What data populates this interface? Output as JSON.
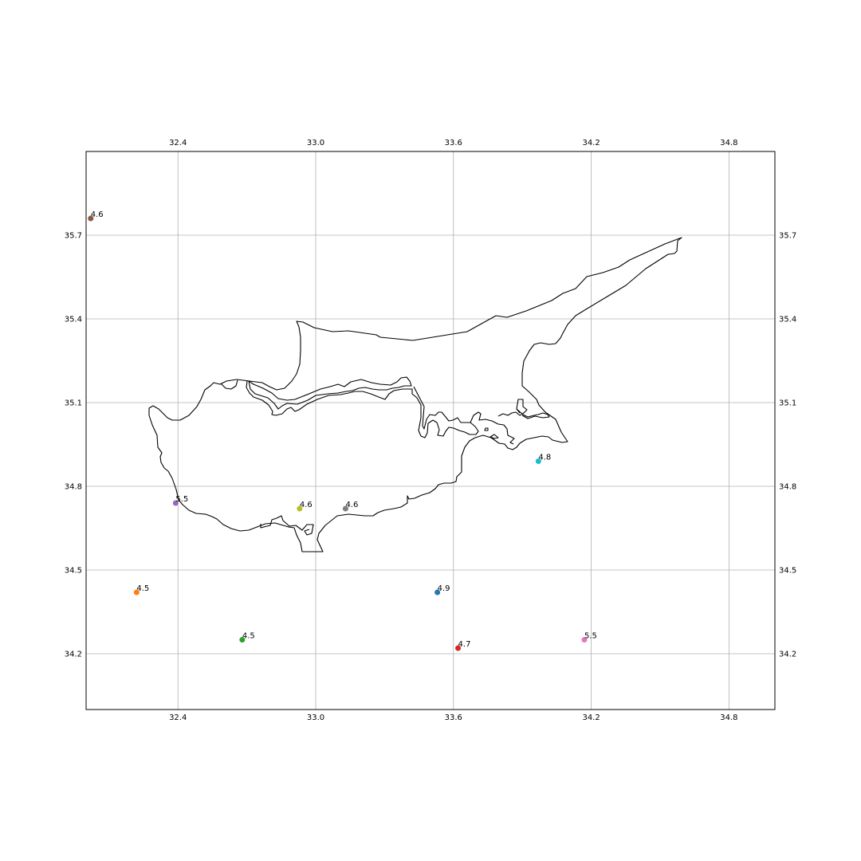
{
  "chart_data": {
    "type": "scatter",
    "title": "",
    "xlabel": "",
    "ylabel": "",
    "xlim": [
      32.0,
      35.0
    ],
    "ylim": [
      34.0,
      36.0
    ],
    "grid": true,
    "x_ticks": [
      32.4,
      33.0,
      33.6,
      34.2,
      34.8
    ],
    "y_ticks": [
      34.2,
      34.5,
      34.8,
      35.1,
      35.4,
      35.7
    ],
    "x_tick_labels": [
      "32.4",
      "33.0",
      "33.6",
      "34.2",
      "34.8"
    ],
    "y_tick_labels": [
      "34.2",
      "34.5",
      "34.8",
      "35.1",
      "35.4",
      "35.7"
    ],
    "points": [
      {
        "lon": 33.53,
        "lat": 34.42,
        "label": "4.9",
        "color": "#1f77b4"
      },
      {
        "lon": 32.22,
        "lat": 34.42,
        "label": "4.5",
        "color": "#ff7f0e"
      },
      {
        "lon": 32.68,
        "lat": 34.25,
        "label": "4.5",
        "color": "#2ca02c"
      },
      {
        "lon": 33.62,
        "lat": 34.22,
        "label": "4.7",
        "color": "#d62728"
      },
      {
        "lon": 32.39,
        "lat": 34.74,
        "label": "5.5",
        "color": "#9467bd"
      },
      {
        "lon": 32.02,
        "lat": 35.76,
        "label": "4.6",
        "color": "#8c564b"
      },
      {
        "lon": 34.17,
        "lat": 34.25,
        "label": "5.5",
        "color": "#e377c2"
      },
      {
        "lon": 33.13,
        "lat": 34.72,
        "label": "4.6",
        "color": "#7f7f7f"
      },
      {
        "lon": 32.93,
        "lat": 34.72,
        "label": "4.6",
        "color": "#bcbd22"
      },
      {
        "lon": 33.97,
        "lat": 34.89,
        "label": "4.8",
        "color": "#17becf"
      }
    ]
  }
}
